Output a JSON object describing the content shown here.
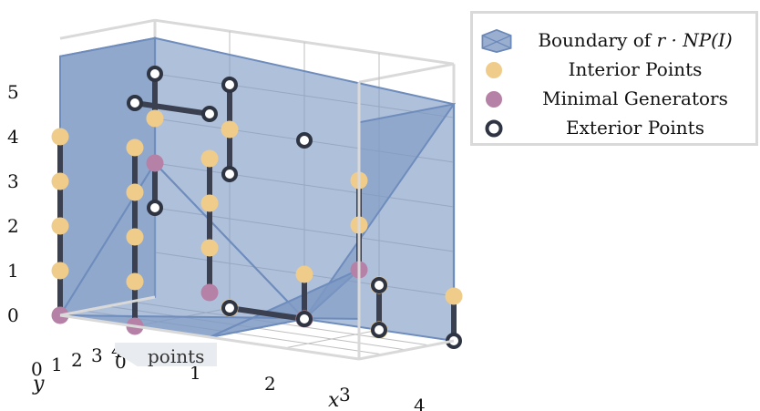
{
  "chart_data": {
    "type": "scatter3d",
    "surface_label_prefix": "Boundary of ",
    "surface_label_math": "r · NP(I)",
    "overlay_label": "points",
    "axes": {
      "x": {
        "label": "x",
        "ticks": [
          "0",
          "1",
          "2",
          "3",
          "4"
        ],
        "range": [
          0,
          4
        ]
      },
      "y": {
        "label": "y",
        "ticks": [
          "0",
          "1",
          "2",
          "3",
          "4"
        ],
        "range": [
          0,
          4
        ]
      },
      "z": {
        "label": "",
        "ticks": [
          "0",
          "1",
          "2",
          "3",
          "4",
          "5"
        ],
        "range": [
          0,
          5
        ]
      }
    },
    "series": [
      {
        "name": "Interior Points",
        "color": "#f0cc8a",
        "points": [
          [
            0,
            4,
            1
          ],
          [
            0,
            4,
            2
          ],
          [
            0,
            4,
            3
          ],
          [
            0,
            4,
            4
          ],
          [
            0,
            0,
            4
          ],
          [
            1,
            4,
            1
          ],
          [
            1,
            4,
            2
          ],
          [
            1,
            4,
            3
          ],
          [
            1,
            4,
            4
          ],
          [
            1,
            0,
            4
          ],
          [
            2,
            4,
            2
          ],
          [
            2,
            4,
            3
          ],
          [
            2,
            4,
            4
          ],
          [
            1,
            0,
            0
          ],
          [
            2,
            0,
            0
          ],
          [
            2,
            0,
            1
          ],
          [
            3,
            0,
            0
          ],
          [
            3,
            0,
            1
          ],
          [
            4,
            0,
            1
          ],
          [
            4,
            4,
            3
          ],
          [
            4,
            4,
            4
          ]
        ]
      },
      {
        "name": "Minimal Generators",
        "color": "#b681a6",
        "points": [
          [
            0,
            4,
            0
          ],
          [
            0,
            0,
            3
          ],
          [
            1,
            4,
            0
          ],
          [
            2,
            4,
            1
          ],
          [
            2,
            0,
            0
          ],
          [
            4,
            4,
            2
          ]
        ]
      },
      {
        "name": "Exterior Points",
        "color": "#ffffff",
        "stroke": "#2e3442",
        "points": [
          [
            0,
            0,
            2
          ],
          [
            0,
            0,
            5
          ],
          [
            1,
            0,
            5
          ],
          [
            1,
            0,
            3
          ],
          [
            1,
            0,
            0
          ],
          [
            2,
            0,
            4
          ],
          [
            2,
            0,
            0
          ],
          [
            3,
            0,
            1
          ],
          [
            4,
            0,
            0
          ],
          [
            1,
            4,
            5
          ],
          [
            2,
            4,
            5
          ],
          [
            3,
            0,
            0
          ]
        ]
      }
    ],
    "legend_position": "top-right",
    "grid": true
  }
}
